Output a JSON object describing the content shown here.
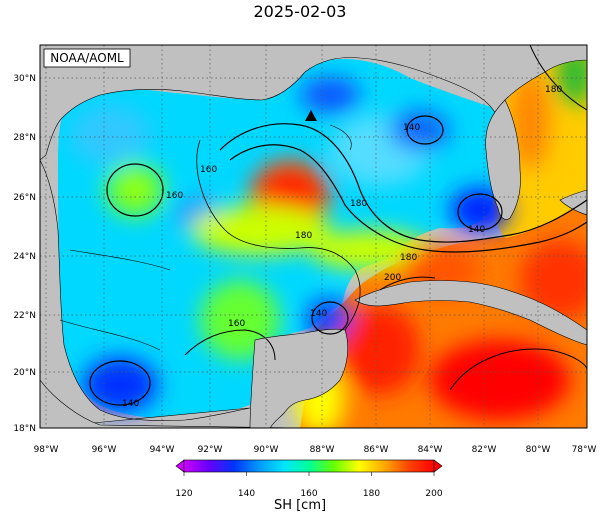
{
  "title": "2025-02-03",
  "credit": "NOAA/AOML",
  "map": {
    "lon_range": [
      -98.5,
      -78
    ],
    "lat_range": [
      18,
      31
    ],
    "lon_ticks": [
      "98°W",
      "96°W",
      "94°W",
      "92°W",
      "90°W",
      "88°W",
      "86°W",
      "84°W",
      "82°W",
      "80°W",
      "78°W"
    ],
    "lat_ticks": [
      "30°N",
      "28°N",
      "26°N",
      "24°N",
      "22°N",
      "20°N",
      "18°N"
    ],
    "gridlines": "dotted",
    "land_color": "#c0c0c0",
    "marker": {
      "symbol": "triangle",
      "lon": -88.3,
      "lat": 28.8
    },
    "contour_labels": [
      "160",
      "160",
      "180",
      "180",
      "180",
      "140",
      "140",
      "140",
      "200",
      "160",
      "140",
      "180"
    ]
  },
  "colorbar": {
    "variable_label": "SH [cm]",
    "min": 120,
    "max": 200,
    "tick_labels": [
      "120",
      "140",
      "160",
      "180",
      "200"
    ],
    "colors": [
      "#cc00ff",
      "#6600ff",
      "#0033ff",
      "#0099ff",
      "#00e5ff",
      "#00ff99",
      "#66ff00",
      "#ffff00",
      "#ffaa00",
      "#ff4400",
      "#ff0000"
    ]
  }
}
